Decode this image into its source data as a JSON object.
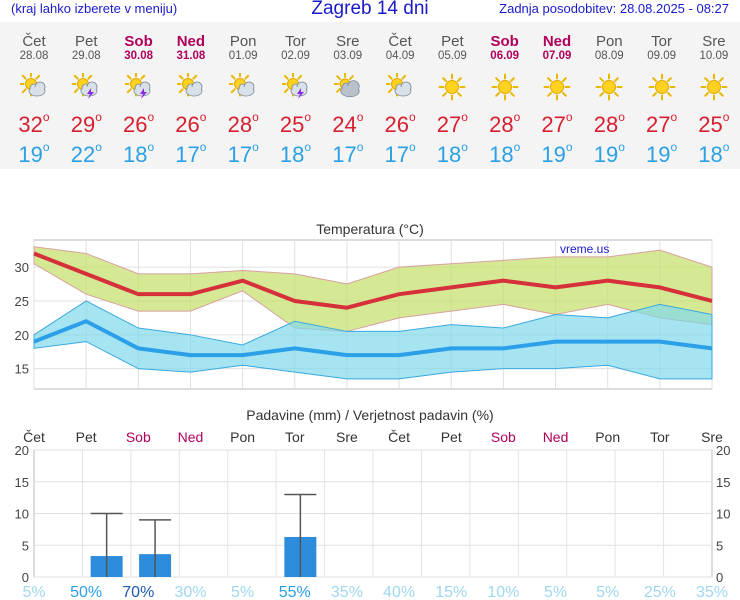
{
  "header": {
    "hint": "(kraj lahko izberete v meniju)",
    "title": "Zagreb 14 dni",
    "updated": "Zadnja posodobitev: 28.08.2025 - 08:27"
  },
  "days": [
    {
      "name": "Čet",
      "date": "28.08",
      "weekend": false,
      "icon": "sun-cloud-icon",
      "tmax": "32",
      "tmin": "19"
    },
    {
      "name": "Pet",
      "date": "29.08",
      "weekend": false,
      "icon": "sun-storm-icon",
      "tmax": "29",
      "tmin": "22"
    },
    {
      "name": "Sob",
      "date": "30.08",
      "weekend": true,
      "icon": "sun-storm-icon",
      "tmax": "26",
      "tmin": "18"
    },
    {
      "name": "Ned",
      "date": "31.08",
      "weekend": true,
      "icon": "sun-cloud-icon",
      "tmax": "26",
      "tmin": "17"
    },
    {
      "name": "Pon",
      "date": "01.09",
      "weekend": false,
      "icon": "sun-cloud-icon",
      "tmax": "28",
      "tmin": "17"
    },
    {
      "name": "Tor",
      "date": "02.09",
      "weekend": false,
      "icon": "sun-storm-icon",
      "tmax": "25",
      "tmin": "18"
    },
    {
      "name": "Sre",
      "date": "03.09",
      "weekend": false,
      "icon": "cloud-icon",
      "tmax": "24",
      "tmin": "17"
    },
    {
      "name": "Čet",
      "date": "04.09",
      "weekend": false,
      "icon": "sun-cloud-icon",
      "tmax": "26",
      "tmin": "17"
    },
    {
      "name": "Pet",
      "date": "05.09",
      "weekend": false,
      "icon": "sun-icon",
      "tmax": "27",
      "tmin": "18"
    },
    {
      "name": "Sob",
      "date": "06.09",
      "weekend": true,
      "icon": "sun-icon",
      "tmax": "28",
      "tmin": "18"
    },
    {
      "name": "Ned",
      "date": "07.09",
      "weekend": true,
      "icon": "sun-icon",
      "tmax": "27",
      "tmin": "19"
    },
    {
      "name": "Pon",
      "date": "08.09",
      "weekend": false,
      "icon": "sun-icon",
      "tmax": "28",
      "tmin": "19"
    },
    {
      "name": "Tor",
      "date": "09.09",
      "weekend": false,
      "icon": "sun-icon",
      "tmax": "27",
      "tmin": "19"
    },
    {
      "name": "Sre",
      "date": "10.09",
      "weekend": false,
      "icon": "sun-icon",
      "tmax": "25",
      "tmin": "18"
    }
  ],
  "colors": {
    "tmax": "#d6303a",
    "tmin": "#2b9fe8",
    "band_max": "#c3e066",
    "band_min": "#7fd8ea",
    "bar": "#2d8cdc",
    "weekend": "#b0005a",
    "prob_low": "#9fd7ef",
    "prob_mid": "#2b9fe8",
    "prob_high": "#1a5ab0"
  },
  "chart_data": [
    {
      "type": "line",
      "title": "Temperatura (°C)",
      "watermark": "vreme.us",
      "x": [
        "Čet",
        "Pet",
        "Sob",
        "Ned",
        "Pon",
        "Tor",
        "Sre",
        "Čet",
        "Pet",
        "Sob",
        "Ned",
        "Pon",
        "Tor",
        "Sre"
      ],
      "ylim": [
        12,
        34
      ],
      "yticks": [
        15,
        20,
        25,
        30
      ],
      "series": [
        {
          "name": "max",
          "values": [
            32,
            29,
            26,
            26,
            28,
            25,
            24,
            26,
            27,
            28,
            27,
            28,
            27,
            25
          ]
        },
        {
          "name": "max_upper",
          "values": [
            33,
            32,
            29,
            29,
            29.5,
            29,
            27.5,
            30,
            30.5,
            31,
            31.5,
            31.5,
            32.5,
            30
          ]
        },
        {
          "name": "max_lower",
          "values": [
            30.5,
            26,
            23.5,
            23.5,
            26.5,
            21,
            20.5,
            22.5,
            23.5,
            24.5,
            23,
            24.5,
            22.5,
            21.5
          ]
        },
        {
          "name": "min",
          "values": [
            19,
            22,
            18,
            17,
            17,
            18,
            17,
            17,
            18,
            18,
            19,
            19,
            19,
            18
          ]
        },
        {
          "name": "min_upper",
          "values": [
            20,
            25,
            21,
            20,
            18.5,
            22,
            20.5,
            20.5,
            21.5,
            21,
            23,
            22.5,
            24.5,
            23
          ]
        },
        {
          "name": "min_lower",
          "values": [
            18,
            19,
            15,
            14.5,
            15.5,
            14.5,
            13.5,
            13.5,
            14.5,
            15,
            15,
            15.5,
            13.5,
            13.5
          ]
        }
      ],
      "grid": true
    },
    {
      "type": "bar",
      "title": "Padavine (mm) / Verjetnost padavin (%)",
      "x": [
        "Čet",
        "Pet",
        "Sob",
        "Ned",
        "Pon",
        "Tor",
        "Sre",
        "Čet",
        "Pet",
        "Sob",
        "Ned",
        "Pon",
        "Tor",
        "Sre"
      ],
      "values": [
        0,
        3.3,
        3.6,
        0,
        0,
        6.3,
        0,
        0,
        0,
        0,
        0,
        0,
        0,
        0
      ],
      "error_max": [
        0,
        10,
        9,
        0,
        0,
        13,
        0,
        0,
        0,
        0,
        0,
        0,
        0,
        0
      ],
      "probability": [
        "5%",
        "50%",
        "70%",
        "30%",
        "5%",
        "55%",
        "35%",
        "40%",
        "15%",
        "10%",
        "5%",
        "5%",
        "25%",
        "35%"
      ],
      "ylim": [
        0,
        20
      ],
      "yticks": [
        0,
        5,
        10,
        15,
        20
      ],
      "grid": true
    }
  ]
}
